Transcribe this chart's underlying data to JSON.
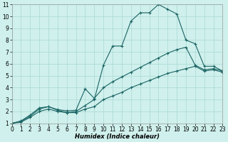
{
  "xlabel": "Humidex (Indice chaleur)",
  "background_color": "#cff0ec",
  "grid_color": "#aad8d4",
  "line_color": "#1a6464",
  "xlim": [
    0,
    23
  ],
  "ylim": [
    1,
    11
  ],
  "xticks": [
    0,
    1,
    2,
    3,
    4,
    5,
    6,
    7,
    8,
    9,
    10,
    11,
    12,
    13,
    14,
    15,
    16,
    17,
    18,
    19,
    20,
    21,
    22,
    23
  ],
  "yticks": [
    1,
    2,
    3,
    4,
    5,
    6,
    7,
    8,
    9,
    10,
    11
  ],
  "line_peak_x": [
    0,
    1,
    2,
    3,
    4,
    5,
    6,
    7,
    8,
    9,
    10,
    11,
    12,
    13,
    14,
    15,
    16,
    17,
    18,
    19,
    20,
    21,
    22,
    23
  ],
  "line_peak_y": [
    1,
    1.2,
    1.7,
    2.3,
    2.4,
    2.1,
    1.9,
    2.0,
    2.5,
    3.0,
    5.9,
    7.5,
    7.5,
    9.6,
    10.3,
    10.3,
    11.0,
    10.6,
    10.2,
    8.0,
    7.7,
    5.8,
    5.8,
    5.4
  ],
  "line_upper_x": [
    0,
    1,
    2,
    3,
    4,
    5,
    6,
    7,
    8,
    9,
    10,
    11,
    12,
    13,
    14,
    15,
    16,
    17,
    18,
    19,
    20,
    21,
    22,
    23
  ],
  "line_upper_y": [
    1,
    1.15,
    1.6,
    2.2,
    2.4,
    2.15,
    2.05,
    2.1,
    3.9,
    3.1,
    4.0,
    4.5,
    4.9,
    5.3,
    5.7,
    6.1,
    6.5,
    6.9,
    7.2,
    7.4,
    5.9,
    5.5,
    5.6,
    5.4
  ],
  "line_lower_x": [
    0,
    1,
    2,
    3,
    4,
    5,
    6,
    7,
    8,
    9,
    10,
    11,
    12,
    13,
    14,
    15,
    16,
    17,
    18,
    19,
    20,
    21,
    22,
    23
  ],
  "line_lower_y": [
    1,
    1.1,
    1.5,
    2.0,
    2.2,
    2.0,
    1.9,
    1.9,
    2.2,
    2.4,
    3.0,
    3.3,
    3.6,
    4.0,
    4.3,
    4.6,
    4.9,
    5.2,
    5.4,
    5.6,
    5.8,
    5.4,
    5.5,
    5.3
  ]
}
